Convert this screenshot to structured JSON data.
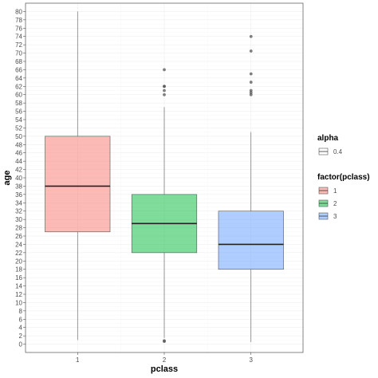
{
  "chart_data": {
    "type": "boxplot",
    "xlabel": "pclass",
    "ylabel": "age",
    "categories": [
      "1",
      "2",
      "3"
    ],
    "ylim": [
      -2,
      82
    ],
    "yticks": [
      0,
      2,
      4,
      6,
      8,
      10,
      12,
      14,
      16,
      18,
      20,
      22,
      24,
      26,
      28,
      30,
      32,
      34,
      36,
      38,
      40,
      42,
      44,
      46,
      48,
      50,
      52,
      54,
      56,
      58,
      60,
      62,
      64,
      66,
      68,
      70,
      72,
      74,
      76,
      78,
      80
    ],
    "grid": true,
    "theme": "light",
    "boxes": [
      {
        "category": "1",
        "whisker_low": 1,
        "q1": 27,
        "median": 38,
        "q3": 50,
        "whisker_high": 80,
        "outliers": [],
        "color": "#F8766D"
      },
      {
        "category": "2",
        "whisker_low": 1.5,
        "q1": 22,
        "median": 29,
        "q3": 36,
        "whisker_high": 57,
        "outliers": [
          0.67,
          0.83,
          60,
          61,
          62,
          62,
          66
        ],
        "color": "#00BA38"
      },
      {
        "category": "3",
        "whisker_low": 0.5,
        "q1": 18,
        "median": 24,
        "q3": 32,
        "whisker_high": 51,
        "outliers": [
          60,
          60.5,
          61,
          63,
          65,
          70.5,
          74
        ],
        "color": "#619CFF"
      }
    ],
    "box_alpha": 0.5,
    "legends": [
      {
        "title": "alpha",
        "entries": [
          {
            "label": "0.4",
            "color": "#ffffff"
          }
        ]
      },
      {
        "title": "factor(pclass)",
        "entries": [
          {
            "label": "1",
            "color": "#F8766D"
          },
          {
            "label": "2",
            "color": "#00BA38"
          },
          {
            "label": "3",
            "color": "#619CFF"
          }
        ]
      }
    ],
    "legend_position": "right"
  }
}
